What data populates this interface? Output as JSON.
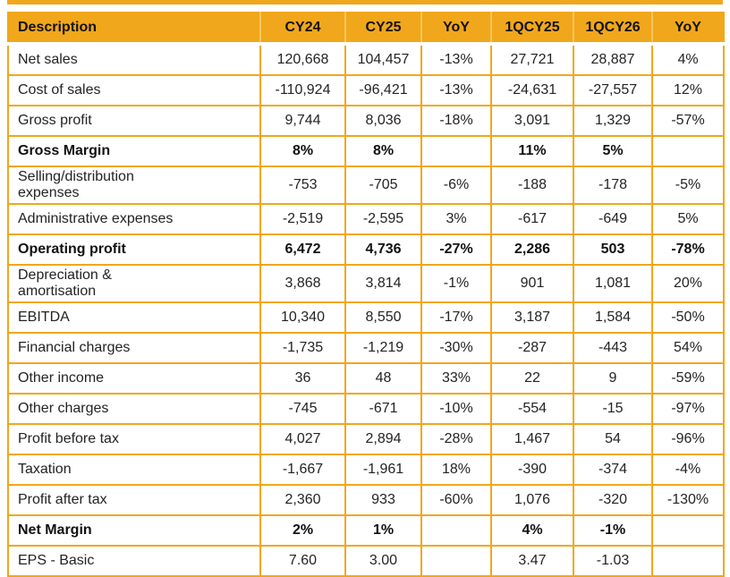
{
  "accent_color": "#F1A71B",
  "chart_data": {
    "type": "table",
    "columns": [
      "Description",
      "CY24",
      "CY25",
      "YoY",
      "1QCY25",
      "1QCY26",
      "YoY"
    ],
    "rows": [
      {
        "label": "Net sales",
        "bold": false,
        "values": [
          "120,668",
          "104,457",
          "-13%",
          "27,721",
          "28,887",
          "4%"
        ]
      },
      {
        "label": "Cost of sales",
        "bold": false,
        "values": [
          "-110,924",
          "-96,421",
          "-13%",
          "-24,631",
          "-27,557",
          "12%"
        ]
      },
      {
        "label": "Gross profit",
        "bold": false,
        "values": [
          "9,744",
          "8,036",
          "-18%",
          "3,091",
          "1,329",
          "-57%"
        ]
      },
      {
        "label": "Gross Margin",
        "bold": true,
        "values": [
          "8%",
          "8%",
          "",
          "11%",
          "5%",
          ""
        ]
      },
      {
        "label": "Selling/distribution\nexpenses",
        "bold": false,
        "values": [
          "-753",
          "-705",
          "-6%",
          "-188",
          "-178",
          "-5%"
        ]
      },
      {
        "label": "Administrative expenses",
        "bold": false,
        "values": [
          "-2,519",
          "-2,595",
          "3%",
          "-617",
          "-649",
          "5%"
        ]
      },
      {
        "label": "Operating profit",
        "bold": true,
        "values": [
          "6,472",
          "4,736",
          "-27%",
          "2,286",
          "503",
          "-78%"
        ]
      },
      {
        "label": "Depreciation &\namortisation",
        "bold": false,
        "values": [
          "3,868",
          "3,814",
          "-1%",
          "901",
          "1,081",
          "20%"
        ]
      },
      {
        "label": "EBITDA",
        "bold": false,
        "values": [
          "10,340",
          "8,550",
          "-17%",
          "3,187",
          "1,584",
          "-50%"
        ]
      },
      {
        "label": "Financial charges",
        "bold": false,
        "values": [
          "-1,735",
          "-1,219",
          "-30%",
          "-287",
          "-443",
          "54%"
        ]
      },
      {
        "label": "Other income",
        "bold": false,
        "values": [
          "36",
          "48",
          "33%",
          "22",
          "9",
          "-59%"
        ]
      },
      {
        "label": "Other charges",
        "bold": false,
        "values": [
          "-745",
          "-671",
          "-10%",
          "-554",
          "-15",
          "-97%"
        ]
      },
      {
        "label": "Profit before tax",
        "bold": false,
        "values": [
          "4,027",
          "2,894",
          "-28%",
          "1,467",
          "54",
          "-96%"
        ]
      },
      {
        "label": "Taxation",
        "bold": false,
        "values": [
          "-1,667",
          "-1,961",
          "18%",
          "-390",
          "-374",
          "-4%"
        ]
      },
      {
        "label": "Profit after tax",
        "bold": false,
        "values": [
          "2,360",
          "933",
          "-60%",
          "1,076",
          "-320",
          "-130%"
        ]
      },
      {
        "label": "Net Margin",
        "bold": true,
        "values": [
          "2%",
          "1%",
          "",
          "4%",
          "-1%",
          ""
        ]
      },
      {
        "label": "EPS - Basic",
        "bold": false,
        "values": [
          "7.60",
          "3.00",
          "",
          "3.47",
          "-1.03",
          ""
        ]
      }
    ]
  }
}
